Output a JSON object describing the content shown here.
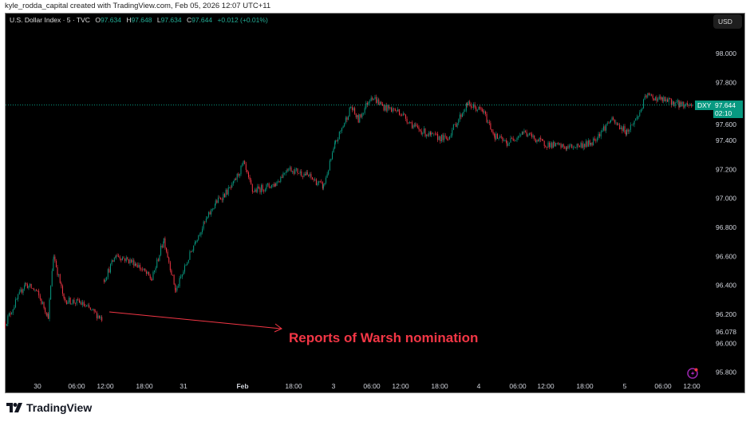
{
  "attribution": "kyle_rodda_capital created with TradingView.com, Feb 05, 2026 12:07 UTC+11",
  "legend": {
    "symbol": "U.S. Dollar Index · 5 · TVC",
    "o_label": "O",
    "o": "97.634",
    "h_label": "H",
    "h": "97.648",
    "l_label": "L",
    "l": "97.634",
    "c_label": "C",
    "c": "97.644",
    "change": "+0.012 (+0.01%)"
  },
  "currency_button": "USD",
  "last_price": {
    "ticker": "DXY",
    "price": "97.644",
    "countdown": "02:10"
  },
  "annotation": {
    "text": "Reports of Warsh nomination",
    "color": "#f23645"
  },
  "footer": {
    "brand": "TradingView"
  },
  "colors": {
    "up": "#089981",
    "down": "#f23645",
    "background": "#000000",
    "last_price": "#089981"
  },
  "chart_data": {
    "type": "candlestick",
    "symbol": "DXY",
    "interval": "5",
    "ylim": [
      95.75,
      98.1
    ],
    "grid": false,
    "y_ticks": [
      "98.000",
      "97.800",
      "97.600",
      "97.400",
      "97.200",
      "97.000",
      "96.800",
      "96.600",
      "96.400",
      "96.200",
      "96.078",
      "96.000",
      "95.800"
    ],
    "x_ticks": [
      {
        "label": "30",
        "time": "2026-01-30 00:00"
      },
      {
        "label": "06:00",
        "time": "2026-01-30 06:00"
      },
      {
        "label": "12:00",
        "time": "2026-01-30 12:00"
      },
      {
        "label": "18:00",
        "time": "2026-01-30 18:00"
      },
      {
        "label": "31",
        "time": "2026-01-31 00:00"
      },
      {
        "label": "Feb",
        "time": "2026-02-02 09:00"
      },
      {
        "label": "18:00",
        "time": "2026-02-02 18:00"
      },
      {
        "label": "3",
        "time": "2026-02-03 00:00"
      },
      {
        "label": "06:00",
        "time": "2026-02-03 06:00"
      },
      {
        "label": "12:00",
        "time": "2026-02-03 12:00"
      },
      {
        "label": "18:00",
        "time": "2026-02-03 18:00"
      },
      {
        "label": "4",
        "time": "2026-02-04 00:00"
      },
      {
        "label": "06:00",
        "time": "2026-02-04 06:00"
      },
      {
        "label": "12:00",
        "time": "2026-02-04 12:00"
      },
      {
        "label": "18:00",
        "time": "2026-02-04 18:00"
      },
      {
        "label": "5",
        "time": "2026-02-05 00:00"
      },
      {
        "label": "06:00",
        "time": "2026-02-05 06:00"
      },
      {
        "label": "12:00",
        "time": "2026-02-05 12:00"
      }
    ],
    "approx_close_path": [
      [
        "2026-01-29 19:00",
        96.14
      ],
      [
        "2026-01-29 22:00",
        96.41
      ],
      [
        "2026-01-29 23:45",
        96.36
      ],
      [
        "2026-01-30 01:35",
        96.19
      ],
      [
        "2026-01-30 02:25",
        96.61
      ],
      [
        "2026-01-30 04:00",
        96.3
      ],
      [
        "2026-01-30 06:40",
        96.28
      ],
      [
        "2026-01-30 11:20",
        96.17
      ],
      [
        "2026-01-30 11:40",
        96.44
      ],
      [
        "2026-01-30 13:35",
        96.61
      ],
      [
        "2026-01-30 16:40",
        96.55
      ],
      [
        "2026-01-30 19:05",
        96.44
      ],
      [
        "2026-01-30 20:55",
        96.72
      ],
      [
        "2026-01-30 22:45",
        96.36
      ],
      [
        "2026-01-31 01:50",
        96.72
      ],
      [
        "2026-01-31 04:50",
        96.97
      ],
      [
        "2026-01-31 07:20",
        97.08
      ],
      [
        "2026-02-02 09:05",
        97.24
      ],
      [
        "2026-02-02 10:40",
        97.05
      ],
      [
        "2026-02-02 14:45",
        97.1
      ],
      [
        "2026-02-02 16:50",
        97.21
      ],
      [
        "2026-02-02 20:00",
        97.16
      ],
      [
        "2026-02-02 22:25",
        97.08
      ],
      [
        "2026-02-03 00:15",
        97.38
      ],
      [
        "2026-02-03 02:40",
        97.63
      ],
      [
        "2026-02-03 03:50",
        97.54
      ],
      [
        "2026-02-03 05:50",
        97.71
      ],
      [
        "2026-02-03 08:25",
        97.63
      ],
      [
        "2026-02-03 11:40",
        97.6
      ],
      [
        "2026-02-03 14:10",
        97.49
      ],
      [
        "2026-02-03 16:40",
        97.43
      ],
      [
        "2026-02-03 19:05",
        97.41
      ],
      [
        "2026-02-03 22:10",
        97.65
      ],
      [
        "2026-02-04 00:35",
        97.6
      ],
      [
        "2026-02-04 02:25",
        97.43
      ],
      [
        "2026-02-04 04:15",
        97.38
      ],
      [
        "2026-02-04 07:00",
        97.46
      ],
      [
        "2026-02-04 11:20",
        97.38
      ],
      [
        "2026-02-04 15:10",
        97.35
      ],
      [
        "2026-02-04 18:50",
        97.38
      ],
      [
        "2026-02-04 21:50",
        97.54
      ],
      [
        "2026-02-05 00:15",
        97.46
      ],
      [
        "2026-02-05 02:05",
        97.57
      ],
      [
        "2026-02-05 03:20",
        97.71
      ],
      [
        "2026-02-05 05:50",
        97.68
      ],
      [
        "2026-02-05 09:25",
        97.65
      ],
      [
        "2026-02-05 12:10",
        97.644
      ]
    ],
    "last_price": 97.644
  }
}
